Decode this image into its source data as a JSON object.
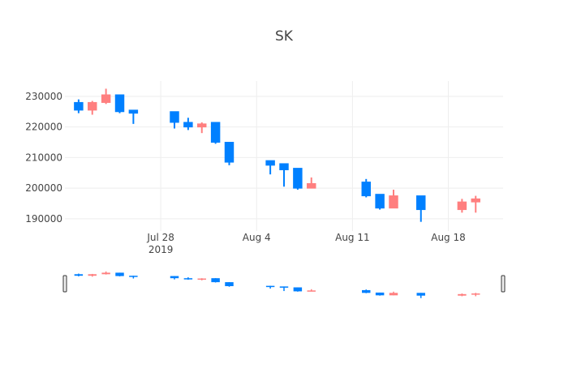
{
  "chart_data": {
    "type": "candlestick",
    "title": "SK",
    "xlabel": "",
    "ylabel": "",
    "x_range": [
      "2019-07-21",
      "2019-08-22"
    ],
    "ylim": [
      186000,
      235000
    ],
    "y_ticks": [
      190000,
      200000,
      210000,
      220000,
      230000
    ],
    "y_tick_labels": [
      "190000",
      "200000",
      "210000",
      "220000",
      "230000"
    ],
    "x_ticks": [
      {
        "date": "2019-07-28",
        "label": "Jul 28",
        "sublabel": "2019"
      },
      {
        "date": "2019-08-04",
        "label": "Aug 4",
        "sublabel": ""
      },
      {
        "date": "2019-08-11",
        "label": "Aug 11",
        "sublabel": ""
      },
      {
        "date": "2019-08-18",
        "label": "Aug 18",
        "sublabel": ""
      }
    ],
    "grid": true,
    "rangeslider": true,
    "increasing_color": "#FF7F7F",
    "decreasing_color": "#0080FF",
    "candles": [
      {
        "date": "2019-07-22",
        "open": 228000,
        "high": 229000,
        "low": 224500,
        "close": 225500
      },
      {
        "date": "2019-07-23",
        "open": 225500,
        "high": 228500,
        "low": 224000,
        "close": 228000
      },
      {
        "date": "2019-07-24",
        "open": 228000,
        "high": 232500,
        "low": 227500,
        "close": 230500
      },
      {
        "date": "2019-07-25",
        "open": 230500,
        "high": 230500,
        "low": 224500,
        "close": 225000
      },
      {
        "date": "2019-07-26",
        "open": 225500,
        "high": 225500,
        "low": 221000,
        "close": 224500
      },
      {
        "date": "2019-07-29",
        "open": 225000,
        "high": 225000,
        "low": 219500,
        "close": 221500
      },
      {
        "date": "2019-07-30",
        "open": 221500,
        "high": 223000,
        "low": 219000,
        "close": 220000
      },
      {
        "date": "2019-07-31",
        "open": 220000,
        "high": 221500,
        "low": 218000,
        "close": 221000
      },
      {
        "date": "2019-08-01",
        "open": 221500,
        "high": 221500,
        "low": 214500,
        "close": 215000
      },
      {
        "date": "2019-08-02",
        "open": 215000,
        "high": 215000,
        "low": 207500,
        "close": 208500
      },
      {
        "date": "2019-08-05",
        "open": 209000,
        "high": 209000,
        "low": 204500,
        "close": 207500
      },
      {
        "date": "2019-08-06",
        "open": 208000,
        "high": 208000,
        "low": 200500,
        "close": 206000
      },
      {
        "date": "2019-08-07",
        "open": 206500,
        "high": 206500,
        "low": 199500,
        "close": 200000
      },
      {
        "date": "2019-08-08",
        "open": 200000,
        "high": 203500,
        "low": 200000,
        "close": 201500
      },
      {
        "date": "2019-08-12",
        "open": 202000,
        "high": 203000,
        "low": 197000,
        "close": 197500
      },
      {
        "date": "2019-08-13",
        "open": 198000,
        "high": 198000,
        "low": 193000,
        "close": 193500
      },
      {
        "date": "2019-08-14",
        "open": 193500,
        "high": 199500,
        "low": 193500,
        "close": 197500
      },
      {
        "date": "2019-08-16",
        "open": 197500,
        "high": 197500,
        "low": 189000,
        "close": 193000
      },
      {
        "date": "2019-08-19",
        "open": 193000,
        "high": 196500,
        "low": 192000,
        "close": 195500
      },
      {
        "date": "2019-08-20",
        "open": 195500,
        "high": 197500,
        "low": 192000,
        "close": 196500
      }
    ]
  }
}
